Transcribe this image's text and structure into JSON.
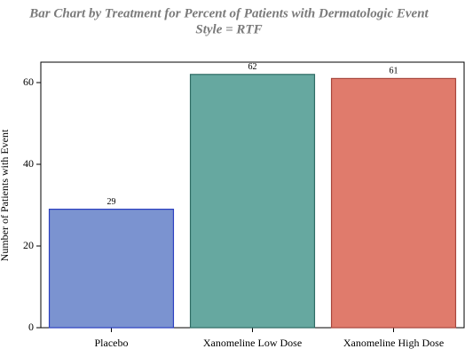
{
  "chart_data": {
    "type": "bar",
    "title": "Bar Chart by Treatment for Percent of Patients with Dermatologic Event",
    "subtitle": "Style = RTF",
    "y_label": "Number of Patients with Event",
    "categories": [
      "Placebo",
      "Xanomeline Low Dose",
      "Xanomeline High Dose"
    ],
    "values": [
      29,
      62,
      61
    ],
    "colors": [
      "#7b93d0",
      "#66a8a0",
      "#e07b6c"
    ],
    "edge_colors": [
      "#2b3fc0",
      "#2e6b64",
      "#a8463c"
    ],
    "ylim": [
      0,
      65
    ],
    "yticks": [
      0,
      20,
      40,
      60
    ],
    "grid": false
  }
}
